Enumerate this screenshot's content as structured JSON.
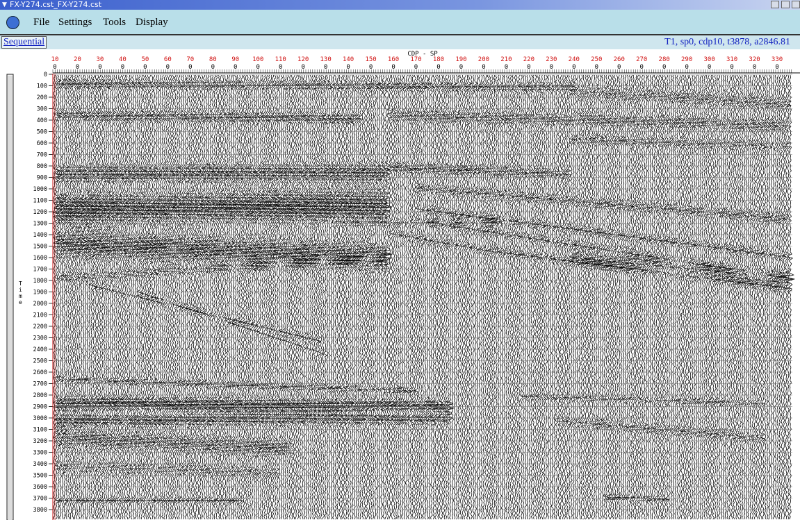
{
  "window": {
    "title": "FX-Y274.cst_FX-Y274.cst"
  },
  "menu": [
    "File",
    "Settings",
    "Tools",
    "Display"
  ],
  "toolbar": {
    "mode": "Sequential",
    "status": "T1, sp0, cdp10, t3878, a2846.81"
  },
  "axes": {
    "x_label": "CDP - SP",
    "y_label": "Time",
    "x_ticks": [
      {
        "label": "10",
        "sub": "0"
      },
      {
        "label": "20",
        "sub": "0"
      },
      {
        "label": "30",
        "sub": "0"
      },
      {
        "label": "40",
        "sub": "0"
      },
      {
        "label": "50",
        "sub": "0"
      },
      {
        "label": "60",
        "sub": "0"
      },
      {
        "label": "70",
        "sub": "0"
      },
      {
        "label": "80",
        "sub": "0"
      },
      {
        "label": "90",
        "sub": "0"
      },
      {
        "label": "100",
        "sub": "0"
      },
      {
        "label": "110",
        "sub": "0"
      },
      {
        "label": "120",
        "sub": "0"
      },
      {
        "label": "130",
        "sub": "0"
      },
      {
        "label": "140",
        "sub": "0"
      },
      {
        "label": "150",
        "sub": "0"
      },
      {
        "label": "160",
        "sub": "0"
      },
      {
        "label": "170",
        "sub": "0"
      },
      {
        "label": "180",
        "sub": "0"
      },
      {
        "label": "190",
        "sub": "0"
      },
      {
        "label": "200",
        "sub": "0"
      },
      {
        "label": "210",
        "sub": "0"
      },
      {
        "label": "220",
        "sub": "0"
      },
      {
        "label": "230",
        "sub": "0"
      },
      {
        "label": "240",
        "sub": "0"
      },
      {
        "label": "250",
        "sub": "0"
      },
      {
        "label": "260",
        "sub": "0"
      },
      {
        "label": "270",
        "sub": "0"
      },
      {
        "label": "280",
        "sub": "0"
      },
      {
        "label": "290",
        "sub": "0"
      },
      {
        "label": "300",
        "sub": "0"
      },
      {
        "label": "310",
        "sub": "0"
      },
      {
        "label": "320",
        "sub": "0"
      },
      {
        "label": "330",
        "sub": "0"
      }
    ],
    "y_ticks": [
      "0",
      "100",
      "200",
      "300",
      "400",
      "500",
      "600",
      "700",
      "800",
      "900",
      "1000",
      "1100",
      "1200",
      "1300",
      "1400",
      "1500",
      "1600",
      "1700",
      "1800",
      "1900",
      "2000",
      "2100",
      "2200",
      "2300",
      "2400",
      "2500",
      "2600",
      "2700",
      "2800",
      "2900",
      "3000",
      "3100",
      "3200",
      "3300",
      "3400",
      "3500",
      "3600",
      "3700",
      "3800"
    ]
  }
}
